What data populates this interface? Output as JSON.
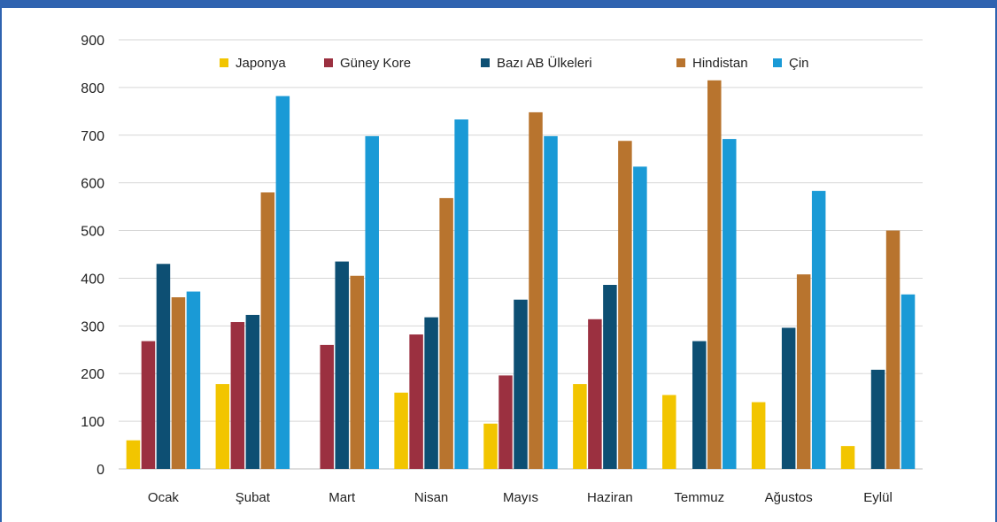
{
  "chart_data": {
    "type": "bar",
    "title": "",
    "xlabel": "",
    "ylabel": "",
    "ylim": [
      0,
      900
    ],
    "yticks": [
      0,
      100,
      200,
      300,
      400,
      500,
      600,
      700,
      800,
      900
    ],
    "grid": true,
    "legend_position": "top",
    "categories": [
      "Ocak",
      "Şubat",
      "Mart",
      "Nisan",
      "Mayıs",
      "Haziran",
      "Temmuz",
      "Ağustos",
      "Eylül"
    ],
    "series": [
      {
        "name": "Japonya",
        "color": "#f2c500",
        "values": [
          60,
          178,
          0,
          160,
          95,
          178,
          155,
          140,
          48
        ]
      },
      {
        "name": "Güney Kore",
        "color": "#9b3040",
        "values": [
          268,
          308,
          260,
          282,
          196,
          314,
          0,
          0,
          0
        ]
      },
      {
        "name": "Bazı AB Ülkeleri",
        "color": "#0d4f73",
        "values": [
          430,
          323,
          435,
          318,
          355,
          386,
          268,
          296,
          208
        ]
      },
      {
        "name": "Hindistan",
        "color": "#b8742e",
        "values": [
          360,
          580,
          405,
          568,
          748,
          688,
          815,
          408,
          500
        ]
      },
      {
        "name": "Çin",
        "color": "#1a9ad6",
        "values": [
          372,
          782,
          698,
          733,
          698,
          634,
          692,
          583,
          366
        ]
      }
    ]
  }
}
